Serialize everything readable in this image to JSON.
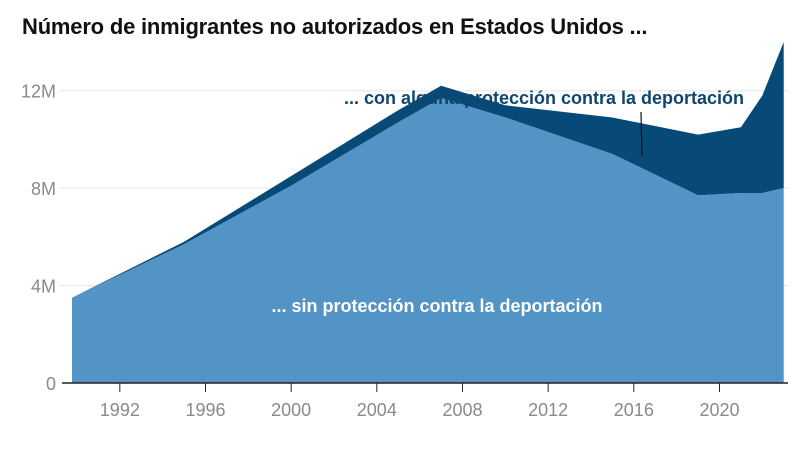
{
  "title": "Número de inmigrantes no autorizados en Estados Unidos ...",
  "colors": {
    "protected": "#084a77",
    "unprotected": "#5294c5",
    "annotation_text": "#0f4670",
    "grid": "#e6e6e6",
    "axis": "#222222",
    "tick_text": "#8a8a8a"
  },
  "chart_data": {
    "type": "area",
    "stacked": true,
    "title": "Número de inmigrantes no autorizados en Estados Unidos ...",
    "xlabel": "",
    "ylabel": "",
    "xlim": [
      1989.3,
      2023.2
    ],
    "ylim": [
      0,
      14
    ],
    "x_ticks": [
      1992,
      1996,
      2000,
      2004,
      2008,
      2012,
      2016,
      2020
    ],
    "x_tick_labels": [
      "1992",
      "1996",
      "2000",
      "2004",
      "2008",
      "2012",
      "2016",
      "2020"
    ],
    "y_ticks": [
      0,
      4,
      8,
      12
    ],
    "y_tick_labels": [
      "0",
      "4M",
      "8M",
      "12M"
    ],
    "grid": "horizontal",
    "x": [
      1990,
      1995,
      2000,
      2005,
      2007,
      2010,
      2015,
      2019,
      2021,
      2022,
      2023
    ],
    "series": [
      {
        "name": "... sin protección contra la deportación",
        "values": [
          3.5,
          5.7,
          8.1,
          10.7,
          11.7,
          10.9,
          9.4,
          7.7,
          7.8,
          7.8,
          8.0
        ]
      },
      {
        "name": "... con alguna protección contra la deportación",
        "values": [
          0.0,
          0.1,
          0.4,
          0.5,
          0.5,
          0.5,
          1.5,
          2.5,
          2.7,
          4.0,
          6.0
        ]
      }
    ]
  }
}
